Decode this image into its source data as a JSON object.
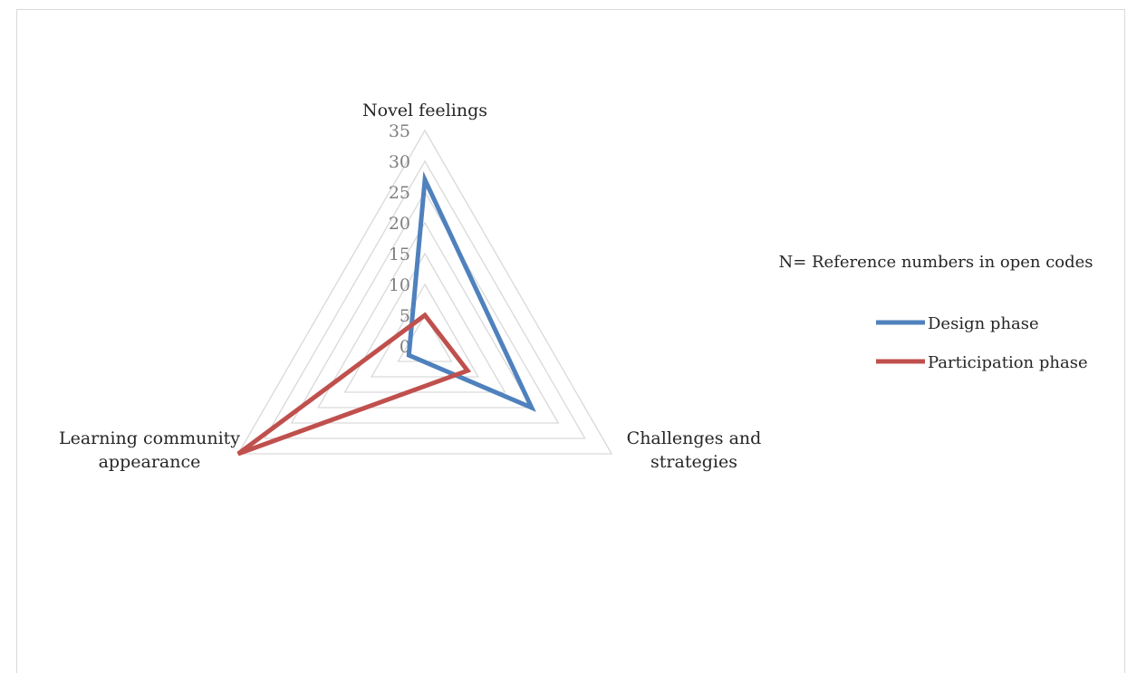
{
  "chart_data": {
    "type": "radar",
    "categories": [
      "Novel feelings",
      "Challenges and strategies",
      "Learning community appearance"
    ],
    "category_lines": [
      [
        "Novel feelings"
      ],
      [
        "Challenges and",
        "strategies"
      ],
      [
        "Learning community",
        "appearance"
      ]
    ],
    "rmin": 0,
    "rmax": 35,
    "ticks": [
      0,
      5,
      10,
      15,
      20,
      25,
      30,
      35
    ],
    "grid": true,
    "legend_position": "right",
    "series": [
      {
        "name": "Design phase",
        "color": "#4f81bd",
        "values": [
          27,
          20,
          3
        ]
      },
      {
        "name": "Participation phase",
        "color": "#c0504d",
        "values": [
          5,
          8,
          35
        ]
      }
    ],
    "annotation": "N= Reference numbers in open codes"
  }
}
